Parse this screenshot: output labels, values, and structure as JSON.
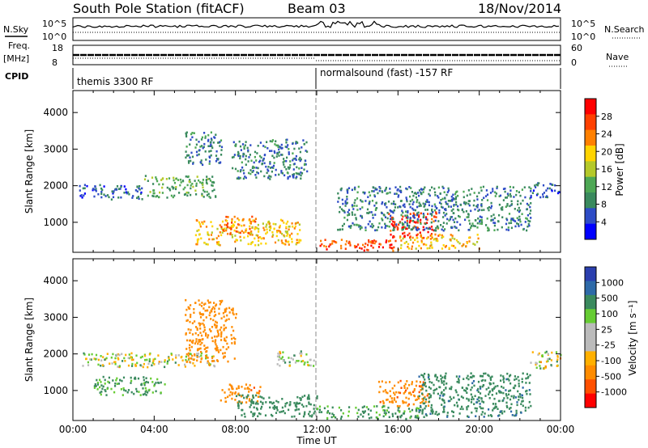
{
  "header": {
    "station": "South Pole Station (fitACF)",
    "beam": "Beam 03",
    "date": "18/Nov/2014"
  },
  "top_panels": {
    "nsky_label": "N.Sky",
    "nsearch_label": "N.Search",
    "nsky_ticks": [
      "10^5",
      "10^0"
    ],
    "freq_label_1": "Freq.",
    "freq_label_2": "[MHz]",
    "freq_ticks": [
      "18",
      "8"
    ],
    "nave_label": "Nave",
    "nave_ticks": [
      "60",
      "0"
    ],
    "cpid_label": "CPID",
    "cpid_left": "themis 3300 RF",
    "cpid_right": "normalsound (fast) -157 RF"
  },
  "colors": {
    "power_scale": [
      "#0000ff",
      "#2e4cc6",
      "#3a8a5e",
      "#4ea855",
      "#b5c92a",
      "#ffd400",
      "#ff8000",
      "#ff4000",
      "#ff0000"
    ],
    "velocity_scale": [
      "#ff0000",
      "#ff5000",
      "#ff8c00",
      "#ffb000",
      "#bbbbbb",
      "#bbbbbb",
      "#66cc33",
      "#3a8a5e",
      "#2e6aa8",
      "#2b3fae"
    ]
  },
  "chart_data": [
    {
      "type": "heatmap",
      "name": "power",
      "ylabel": "Slant Range [km]",
      "yticks": [
        "4000",
        "3000",
        "2000",
        "1000"
      ],
      "ylim": [
        180,
        4600
      ],
      "xlim": [
        0,
        24
      ],
      "colorbar_label": "Power [dB]",
      "colorbar_ticks": [
        "28",
        "24",
        "20",
        "16",
        "12",
        "8",
        "4"
      ],
      "colorbar_range": [
        0,
        32
      ],
      "regions": [
        {
          "t0": 0.3,
          "t1": 3.5,
          "r0": 1650,
          "r1": 2050,
          "value": 6
        },
        {
          "t0": 3.5,
          "t1": 7.0,
          "r0": 1700,
          "r1": 2300,
          "value": 12
        },
        {
          "t0": 5.5,
          "t1": 7.3,
          "r0": 2600,
          "r1": 3500,
          "value": 8
        },
        {
          "t0": 6.0,
          "t1": 11.2,
          "r0": 400,
          "r1": 1100,
          "value": 20
        },
        {
          "t0": 7.2,
          "t1": 9.0,
          "r0": 700,
          "r1": 1200,
          "value": 24
        },
        {
          "t0": 7.8,
          "t1": 11.5,
          "r0": 2200,
          "r1": 3300,
          "value": 8
        },
        {
          "t0": 12.0,
          "t1": 16.0,
          "r0": 250,
          "r1": 550,
          "value": 26
        },
        {
          "t0": 15.5,
          "t1": 18.0,
          "r0": 600,
          "r1": 1300,
          "value": 28
        },
        {
          "t0": 16.0,
          "t1": 20.0,
          "r0": 300,
          "r1": 700,
          "value": 20
        },
        {
          "t0": 13.0,
          "t1": 22.5,
          "r0": 800,
          "r1": 2000,
          "value": 8
        },
        {
          "t0": 22.5,
          "t1": 24.0,
          "r0": 1700,
          "r1": 2100,
          "value": 6
        }
      ]
    },
    {
      "type": "heatmap",
      "name": "velocity",
      "ylabel": "Slant Range [km]",
      "yticks": [
        "4000",
        "3000",
        "2000",
        "1000"
      ],
      "ylim": [
        180,
        4600
      ],
      "xlim": [
        0,
        24
      ],
      "xlabel": "Time UT",
      "xticks": [
        "00:00",
        "04:00",
        "08:00",
        "12:00",
        "16:00",
        "20:00",
        "00:00"
      ],
      "colorbar_label": "Velocity [m s⁻¹]",
      "colorbar_ticks": [
        "1000",
        "500",
        "100",
        "25",
        "-25",
        "-100",
        "-500",
        "-1000"
      ],
      "regions": [
        {
          "t0": 0.3,
          "t1": 7.0,
          "r0": 1650,
          "r1": 2050,
          "value": 0
        },
        {
          "t0": 1.0,
          "t1": 4.5,
          "r0": 900,
          "r1": 1400,
          "value": 150
        },
        {
          "t0": 5.5,
          "t1": 8.0,
          "r0": 1800,
          "r1": 3500,
          "value": -300
        },
        {
          "t0": 7.2,
          "t1": 9.2,
          "r0": 700,
          "r1": 1200,
          "value": -400
        },
        {
          "t0": 8.0,
          "t1": 12.0,
          "r0": 300,
          "r1": 900,
          "value": 300
        },
        {
          "t0": 10.0,
          "t1": 12.0,
          "r0": 1700,
          "r1": 2100,
          "value": 0
        },
        {
          "t0": 12.0,
          "t1": 17.0,
          "r0": 250,
          "r1": 600,
          "value": 150
        },
        {
          "t0": 15.0,
          "t1": 17.5,
          "r0": 600,
          "r1": 1300,
          "value": -400
        },
        {
          "t0": 17.0,
          "t1": 22.5,
          "r0": 300,
          "r1": 1500,
          "value": 400
        },
        {
          "t0": 22.5,
          "t1": 24.0,
          "r0": 1600,
          "r1": 2100,
          "value": 0
        }
      ]
    }
  ]
}
